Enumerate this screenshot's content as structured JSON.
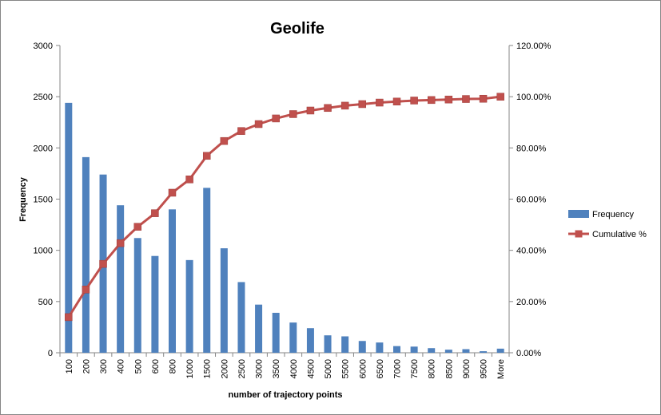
{
  "chart_data": {
    "type": "bar",
    "title": "Geolife",
    "xlabel": "number of trajectory points",
    "ylabel": "Frequency",
    "ylim": [
      0,
      3000
    ],
    "y_ticks": [
      "0",
      "500",
      "1000",
      "1500",
      "2000",
      "2500",
      "3000"
    ],
    "y2lim": [
      0,
      1.2
    ],
    "y2_ticks": [
      "0.00%",
      "20.00%",
      "40.00%",
      "60.00%",
      "80.00%",
      "100.00%",
      "120.00%"
    ],
    "categories": [
      "100",
      "200",
      "300",
      "400",
      "500",
      "600",
      "800",
      "1000",
      "1500",
      "2000",
      "2500",
      "3000",
      "3500",
      "4000",
      "4500",
      "5000",
      "5500",
      "6000",
      "6500",
      "7000",
      "7500",
      "8000",
      "8500",
      "9000",
      "9500",
      "More"
    ],
    "series": [
      {
        "name": "Frequency",
        "type": "bar",
        "axis": "primary",
        "color": "#4F81BD",
        "values": [
          2440,
          1910,
          1740,
          1440,
          1120,
          945,
          1400,
          905,
          1610,
          1020,
          690,
          470,
          390,
          295,
          240,
          170,
          160,
          115,
          100,
          65,
          60,
          45,
          30,
          35,
          15,
          40
        ]
      },
      {
        "name": "Cumulative %",
        "type": "line",
        "axis": "secondary",
        "color": "#C0504D",
        "values": [
          0.139,
          0.247,
          0.347,
          0.428,
          0.492,
          0.545,
          0.625,
          0.677,
          0.769,
          0.827,
          0.866,
          0.893,
          0.915,
          0.932,
          0.946,
          0.956,
          0.965,
          0.971,
          0.977,
          0.981,
          0.985,
          0.987,
          0.989,
          0.991,
          0.992,
          1.0
        ]
      }
    ],
    "legend_position": "right",
    "grid": false
  }
}
